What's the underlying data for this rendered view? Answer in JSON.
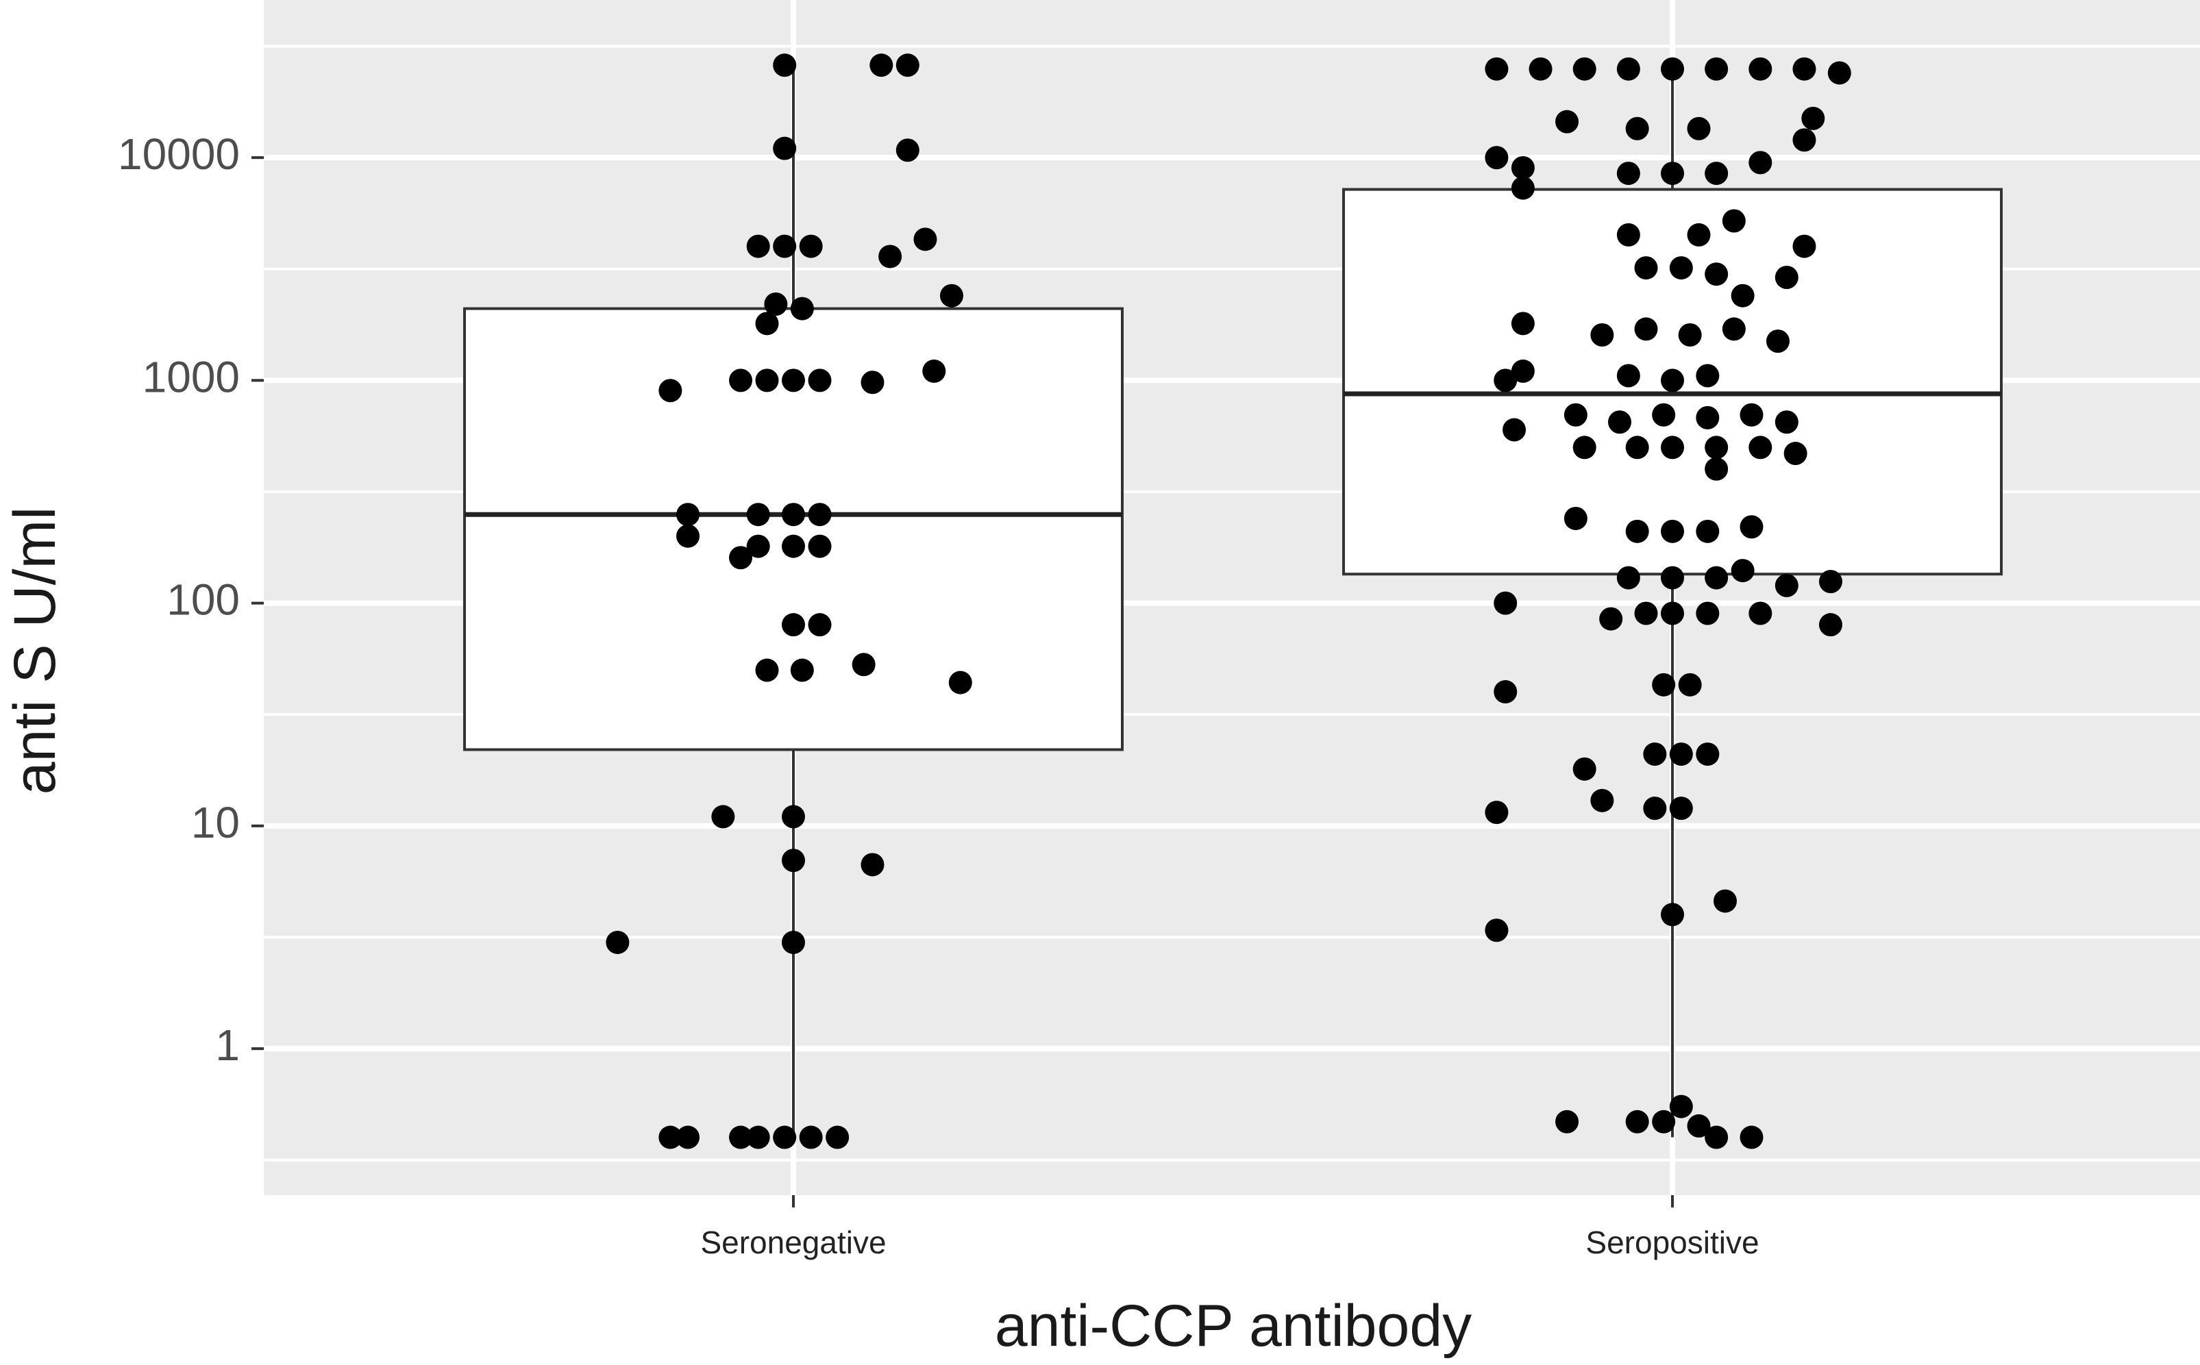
{
  "chart_data": {
    "type": "box",
    "title": "",
    "xlabel": "anti-CCP antibody",
    "ylabel": "anti S U/ml",
    "y_scale": "log10",
    "ylim": [
      0.22,
      51000
    ],
    "yticks": [
      1,
      10,
      100,
      1000,
      10000
    ],
    "ytick_labels": [
      "1",
      "10",
      "100",
      "1000",
      "10000"
    ],
    "grid": true,
    "background": "#ebebeb",
    "grid_color": "#ffffff",
    "point_color": "#000000",
    "categories": [
      "Seronegative",
      "Seropositive"
    ],
    "boxes": [
      {
        "category": "Seronegative",
        "lower_whisker": 0.4,
        "q1": 22,
        "median": 250,
        "q3": 2100,
        "upper_whisker": 26000
      },
      {
        "category": "Seropositive",
        "lower_whisker": 0.4,
        "q1": 135,
        "median": 870,
        "q3": 7200,
        "upper_whisker": 25000
      }
    ],
    "series": [
      {
        "category": "Seronegative",
        "points": [
          [
            0.1,
            26000
          ],
          [
            -0.01,
            26000
          ],
          [
            0.13,
            26000
          ],
          [
            -0.01,
            11000
          ],
          [
            0.13,
            10800
          ],
          [
            -0.01,
            4000
          ],
          [
            0.02,
            4000
          ],
          [
            -0.04,
            4000
          ],
          [
            0.11,
            3600
          ],
          [
            0.15,
            4300
          ],
          [
            0.18,
            2400
          ],
          [
            -0.02,
            2200
          ],
          [
            0.01,
            2100
          ],
          [
            -0.03,
            1800
          ],
          [
            -0.14,
            900
          ],
          [
            -0.06,
            1000
          ],
          [
            -0.03,
            1000
          ],
          [
            0.0,
            1000
          ],
          [
            0.03,
            1000
          ],
          [
            0.09,
            980
          ],
          [
            0.16,
            1100
          ],
          [
            -0.12,
            250
          ],
          [
            -0.12,
            200
          ],
          [
            -0.04,
            250
          ],
          [
            0.0,
            250
          ],
          [
            0.03,
            250
          ],
          [
            -0.04,
            180
          ],
          [
            0.0,
            180
          ],
          [
            0.03,
            180
          ],
          [
            -0.06,
            160
          ],
          [
            0.0,
            80
          ],
          [
            0.03,
            80
          ],
          [
            -0.03,
            50
          ],
          [
            0.01,
            50
          ],
          [
            0.08,
            53
          ],
          [
            0.19,
            44
          ],
          [
            -0.08,
            11
          ],
          [
            0.0,
            11
          ],
          [
            0.0,
            7
          ],
          [
            0.09,
            6.7
          ],
          [
            -0.2,
            3
          ],
          [
            0.0,
            3
          ],
          [
            -0.14,
            0.4
          ],
          [
            -0.12,
            0.4
          ],
          [
            -0.06,
            0.4
          ],
          [
            -0.04,
            0.4
          ],
          [
            -0.01,
            0.4
          ],
          [
            0.02,
            0.4
          ],
          [
            0.05,
            0.4
          ]
        ]
      },
      {
        "category": "Seropositive",
        "points": [
          [
            -0.2,
            25000
          ],
          [
            -0.15,
            25000
          ],
          [
            -0.1,
            25000
          ],
          [
            -0.05,
            25000
          ],
          [
            0.0,
            25000
          ],
          [
            0.05,
            25000
          ],
          [
            0.1,
            25000
          ],
          [
            0.15,
            25000
          ],
          [
            0.19,
            24000
          ],
          [
            -0.12,
            14500
          ],
          [
            -0.04,
            13500
          ],
          [
            0.03,
            13500
          ],
          [
            0.16,
            15000
          ],
          [
            0.15,
            12000
          ],
          [
            -0.2,
            10000
          ],
          [
            -0.17,
            9000
          ],
          [
            -0.05,
            8500
          ],
          [
            0.0,
            8500
          ],
          [
            0.05,
            8500
          ],
          [
            0.1,
            9500
          ],
          [
            -0.17,
            7300
          ],
          [
            0.03,
            4500
          ],
          [
            -0.05,
            4500
          ],
          [
            0.07,
            5200
          ],
          [
            0.15,
            4000
          ],
          [
            -0.03,
            3200
          ],
          [
            0.01,
            3200
          ],
          [
            0.05,
            3000
          ],
          [
            0.13,
            2900
          ],
          [
            0.08,
            2400
          ],
          [
            -0.17,
            1800
          ],
          [
            -0.08,
            1600
          ],
          [
            -0.03,
            1700
          ],
          [
            0.02,
            1600
          ],
          [
            0.07,
            1700
          ],
          [
            0.12,
            1500
          ],
          [
            -0.19,
            1000
          ],
          [
            -0.17,
            1100
          ],
          [
            -0.05,
            1050
          ],
          [
            0.0,
            1000
          ],
          [
            0.04,
            1050
          ],
          [
            -0.11,
            700
          ],
          [
            -0.06,
            650
          ],
          [
            -0.01,
            700
          ],
          [
            0.04,
            680
          ],
          [
            0.09,
            700
          ],
          [
            0.13,
            650
          ],
          [
            -0.18,
            600
          ],
          [
            -0.1,
            500
          ],
          [
            -0.04,
            500
          ],
          [
            0.0,
            500
          ],
          [
            0.05,
            500
          ],
          [
            0.1,
            500
          ],
          [
            0.14,
            470
          ],
          [
            0.05,
            400
          ],
          [
            -0.11,
            240
          ],
          [
            -0.04,
            210
          ],
          [
            0.0,
            210
          ],
          [
            0.04,
            210
          ],
          [
            0.09,
            220
          ],
          [
            -0.05,
            130
          ],
          [
            0.0,
            130
          ],
          [
            0.05,
            130
          ],
          [
            0.08,
            140
          ],
          [
            0.13,
            120
          ],
          [
            0.18,
            125
          ],
          [
            -0.19,
            100
          ],
          [
            -0.07,
            85
          ],
          [
            -0.03,
            90
          ],
          [
            0.0,
            90
          ],
          [
            0.04,
            90
          ],
          [
            0.1,
            90
          ],
          [
            0.18,
            80
          ],
          [
            -0.19,
            40
          ],
          [
            -0.01,
            43
          ],
          [
            0.02,
            43
          ],
          [
            -0.1,
            18
          ],
          [
            -0.08,
            13
          ],
          [
            -0.02,
            21
          ],
          [
            0.01,
            21
          ],
          [
            0.04,
            21
          ],
          [
            -0.02,
            12
          ],
          [
            0.01,
            12
          ],
          [
            -0.2,
            11.5
          ],
          [
            0.0,
            4
          ],
          [
            0.06,
            4.6
          ],
          [
            -0.2,
            3.4
          ],
          [
            -0.12,
            0.47
          ],
          [
            -0.04,
            0.47
          ],
          [
            -0.01,
            0.47
          ],
          [
            0.01,
            0.55
          ],
          [
            0.03,
            0.45
          ],
          [
            0.05,
            0.4
          ],
          [
            0.09,
            0.4
          ]
        ]
      }
    ]
  }
}
